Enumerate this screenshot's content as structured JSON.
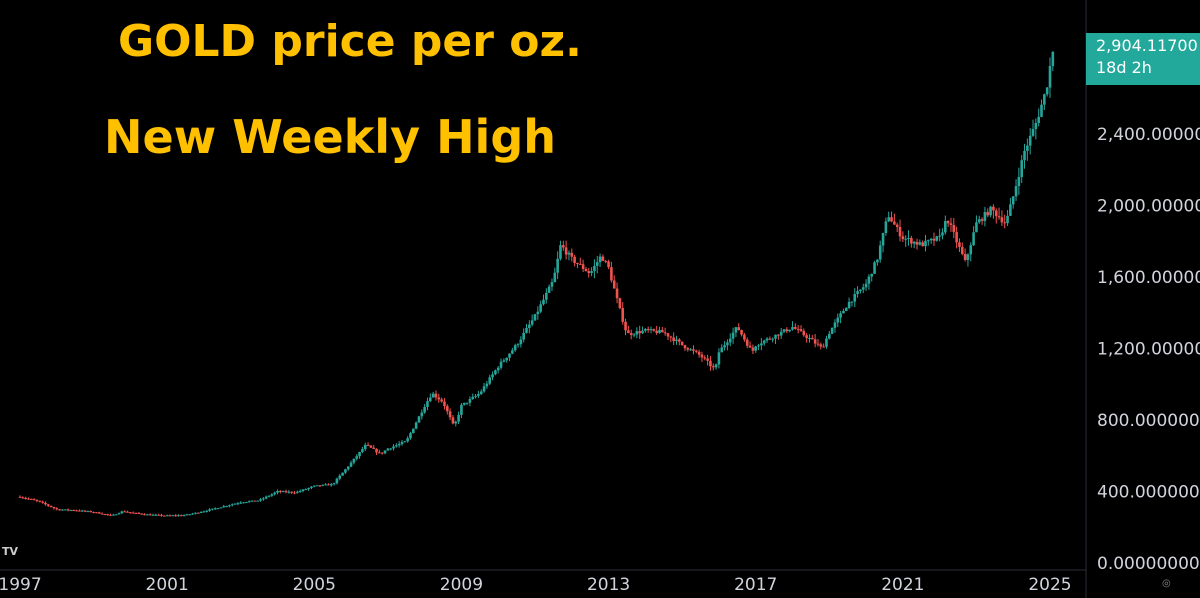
{
  "title_line1": "GOLD price per oz.",
  "title_line2": "New Weekly High",
  "price_tag": {
    "price": "2,904.11700",
    "countdown": "18d 2h"
  },
  "chart_data": {
    "type": "candlestick",
    "title": "GOLD price per oz.",
    "subtitle": "New Weekly High",
    "x_ticks": [
      "1997",
      "2001",
      "2005",
      "2009",
      "2013",
      "2017",
      "2021",
      "2025"
    ],
    "y_ticks": [
      "0.00000000",
      "400.000000",
      "800.000000",
      "1,200.00000",
      "1,600.00000",
      "2,000.00000",
      "2,400.00000"
    ],
    "ylim": [
      0,
      3000
    ],
    "last_price": 2904.117,
    "series": [
      {
        "x": [
          1997.0,
          1997.5,
          1998.0,
          1998.5,
          1999.0,
          1999.5,
          1999.8,
          2000.0,
          2000.5,
          2001.0,
          2001.5,
          2002.0,
          2002.5,
          2003.0,
          2003.5,
          2004.0,
          2004.5,
          2005.0,
          2005.5,
          2006.0,
          2006.4,
          2006.8,
          2007.0,
          2007.5,
          2008.0,
          2008.2,
          2008.5,
          2008.8,
          2009.0,
          2009.5,
          2010.0,
          2010.5,
          2011.0,
          2011.5,
          2011.7,
          2012.0,
          2012.5,
          2012.8,
          2013.0,
          2013.3,
          2013.5,
          2014.0,
          2014.5,
          2015.0,
          2015.5,
          2015.9,
          2016.0,
          2016.5,
          2016.9,
          2017.0,
          2017.5,
          2018.0,
          2018.5,
          2018.8,
          2019.0,
          2019.5,
          2020.0,
          2020.3,
          2020.6,
          2020.8,
          2021.0,
          2021.5,
          2022.0,
          2022.2,
          2022.7,
          2023.0,
          2023.4,
          2023.8,
          2024.0,
          2024.3,
          2024.6,
          2024.9,
          2025.1
        ],
        "y": [
          370,
          345,
          300,
          295,
          285,
          265,
          290,
          282,
          270,
          265,
          268,
          290,
          315,
          340,
          350,
          400,
          395,
          430,
          440,
          560,
          660,
          610,
          640,
          680,
          880,
          950,
          900,
          760,
          880,
          950,
          1100,
          1220,
          1380,
          1580,
          1780,
          1700,
          1620,
          1720,
          1650,
          1420,
          1280,
          1300,
          1290,
          1220,
          1160,
          1080,
          1180,
          1320,
          1180,
          1220,
          1270,
          1320,
          1250,
          1200,
          1290,
          1450,
          1560,
          1700,
          1950,
          1880,
          1820,
          1780,
          1820,
          1930,
          1680,
          1900,
          1980,
          1900,
          2050,
          2300,
          2450,
          2650,
          2904
        ]
      }
    ]
  }
}
